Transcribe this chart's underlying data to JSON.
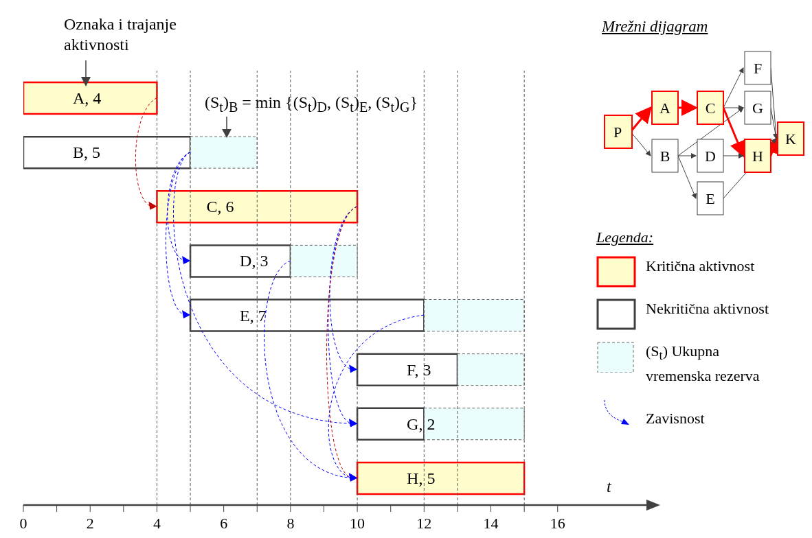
{
  "chart_data": {
    "type": "bar",
    "orientation": "horizontal",
    "categories": [
      null,
      null,
      null,
      null,
      null,
      null,
      null,
      null
    ],
    "series": [
      {
        "name": "Kritična aktivnost",
        "color": "#fffdcc",
        "base": [
          0,
          null,
          4,
          null,
          null,
          null,
          null,
          10
        ],
        "values": [
          4,
          null,
          6,
          null,
          null,
          null,
          null,
          5
        ],
        "value_labels": [
          "A, 4",
          null,
          "C, 6",
          null,
          null,
          null,
          null,
          "H, 5"
        ]
      },
      {
        "name": "Nekritična aktivnost",
        "color": "#ffffff",
        "base": [
          null,
          0,
          null,
          5,
          5,
          10,
          10,
          null
        ],
        "values": [
          null,
          5,
          null,
          3,
          7,
          3,
          2,
          null
        ],
        "value_labels": [
          null,
          "B, 5",
          null,
          "D, 3",
          "E, 7",
          "F, 3",
          "G, 2",
          null
        ]
      },
      {
        "name": "(S$_{t}$) Ukupna vremenska rezerva",
        "color": "#ebfdfd",
        "base": [
          null,
          5,
          null,
          8,
          12,
          13,
          12,
          null
        ],
        "values": [
          null,
          2,
          null,
          2,
          3,
          2,
          3,
          null
        ]
      }
    ],
    "xlim": [
      0,
      18.7
    ],
    "xticks": [
      0,
      {
        "value": 1,
        "label": null
      },
      2,
      {
        "value": 3,
        "label": null
      },
      4,
      {
        "value": 5,
        "label": null
      },
      6,
      {
        "value": 7,
        "label": null
      },
      8,
      {
        "value": 9,
        "label": null
      },
      10,
      {
        "value": 11,
        "label": null
      },
      12,
      {
        "value": 13,
        "label": null
      },
      14,
      {
        "value": 15,
        "label": null
      },
      16
    ],
    "xlabel": "t",
    "ref_lines": [
      {
        "axis": "x",
        "value": 4,
        "color": "#555555",
        "line_style": "dashed"
      },
      {
        "axis": "x",
        "value": 5,
        "color": "#555555",
        "line_style": "dashed"
      },
      {
        "axis": "x",
        "value": 7,
        "color": "#555555",
        "line_style": "dashed"
      },
      {
        "axis": "x",
        "value": 8,
        "color": "#555555",
        "line_style": "dashed"
      },
      {
        "axis": "x",
        "value": 10,
        "color": "#555555",
        "line_style": "dashed"
      },
      {
        "axis": "x",
        "value": 12,
        "color": "#555555",
        "line_style": "dashed"
      },
      {
        "axis": "x",
        "value": 13,
        "color": "#555555",
        "line_style": "dashed"
      },
      {
        "axis": "x",
        "value": 15,
        "color": "#555555",
        "line_style": "dashed"
      }
    ],
    "legend": "right",
    "annotations": [
      "Oznaka i trajanje aktivnosti",
      "(S$_{t}$)$_{B}$ = min {(S$_{t}$)$_{D}$, (S$_{t}$)$_{E}$, (S$_{t}$)$_{G}$}",
      "Mrežni dijagram",
      "Legenda:",
      "Zavisnost",
      "P",
      "A",
      "B",
      "C",
      "D",
      "E",
      "F",
      "G",
      "H",
      "K"
    ]
  }
}
